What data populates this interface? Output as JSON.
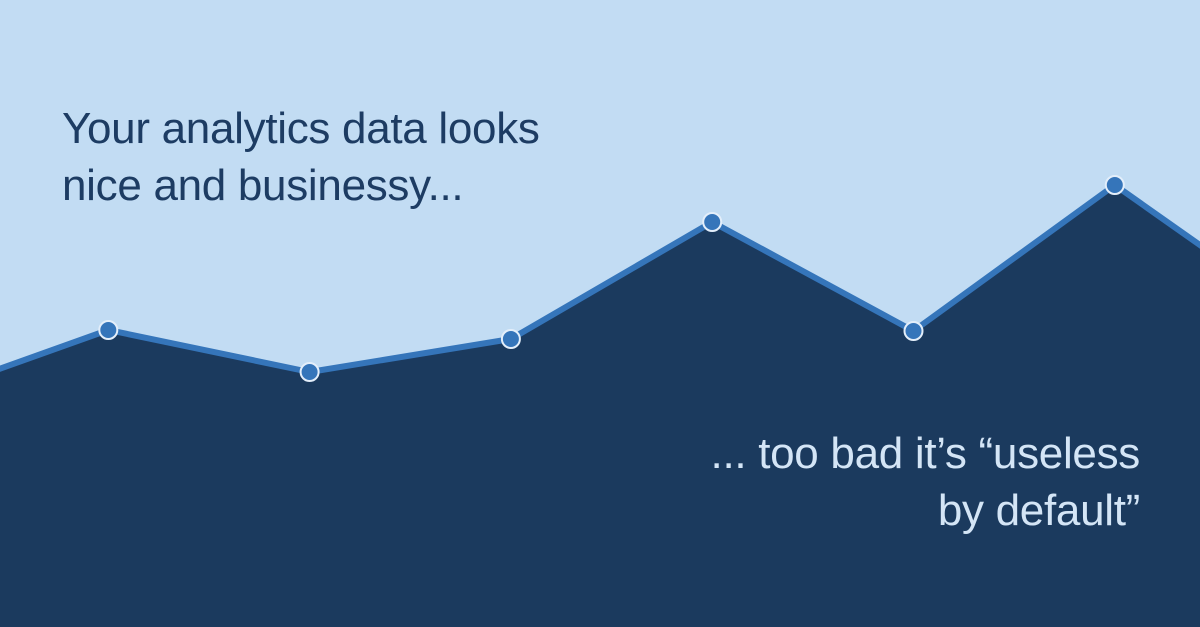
{
  "colors": {
    "background": "#c2dcf3",
    "area_fill": "#1b3a5e",
    "line": "#3575ba",
    "marker_fill": "#3575ba",
    "marker_stroke": "#e3eefa",
    "headline_text": "#1d3c63",
    "tagline_text": "#d4e5f6"
  },
  "headline": {
    "line1": "Your analytics data looks",
    "line2": "nice and businessy..."
  },
  "tagline": {
    "line1": "... too bad it’s “useless",
    "line2": "by default”"
  },
  "chart_data": {
    "type": "area",
    "markers": true,
    "grid": false,
    "legend": "none",
    "axes_visible": false,
    "ylim": [
      0,
      627
    ],
    "y": [
      225,
      297,
      255,
      288,
      405,
      296,
      442,
      300
    ]
  }
}
